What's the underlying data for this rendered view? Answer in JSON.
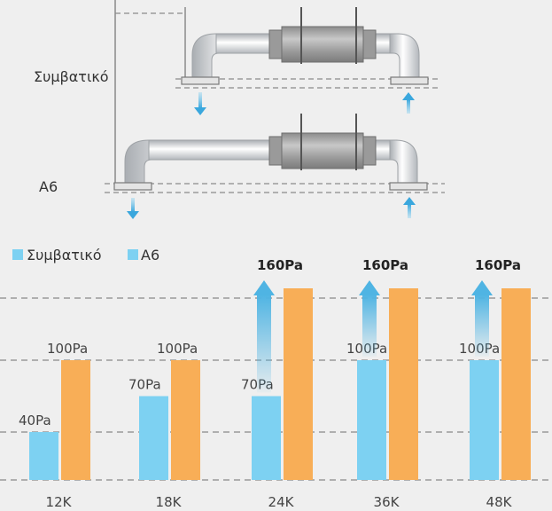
{
  "diagram": {
    "label_conventional": "Συμβατικό",
    "label_a6": "A6"
  },
  "legend": {
    "items": [
      {
        "label": "Συμβατικό",
        "color": "#7dd1f2"
      },
      {
        "label": "A6",
        "color": "#7dd1f2"
      }
    ]
  },
  "chart_data": {
    "type": "bar",
    "categories": [
      "12K",
      "18K",
      "24K",
      "36K",
      "48K"
    ],
    "series": [
      {
        "name": "Συμβατικό",
        "values": [
          40,
          70,
          70,
          100,
          100
        ],
        "color": "#7dd1f2"
      },
      {
        "name": "A6",
        "values": [
          100,
          100,
          160,
          160,
          160
        ],
        "color": "#f8ae57"
      }
    ],
    "data_labels": {
      "series1": [
        "40Pa",
        "70Pa",
        "70Pa",
        "100Pa",
        "100Pa"
      ],
      "series2": [
        "100Pa",
        "100Pa",
        "160Pa",
        "160Pa",
        "160Pa"
      ]
    },
    "upgrade_arrows": [
      false,
      false,
      true,
      true,
      true
    ],
    "ylim": [
      0,
      180
    ],
    "grid": true,
    "gridlines": [
      40,
      100,
      160
    ],
    "legend_position": "top-left",
    "xlabel": "",
    "ylabel": "",
    "title": ""
  }
}
